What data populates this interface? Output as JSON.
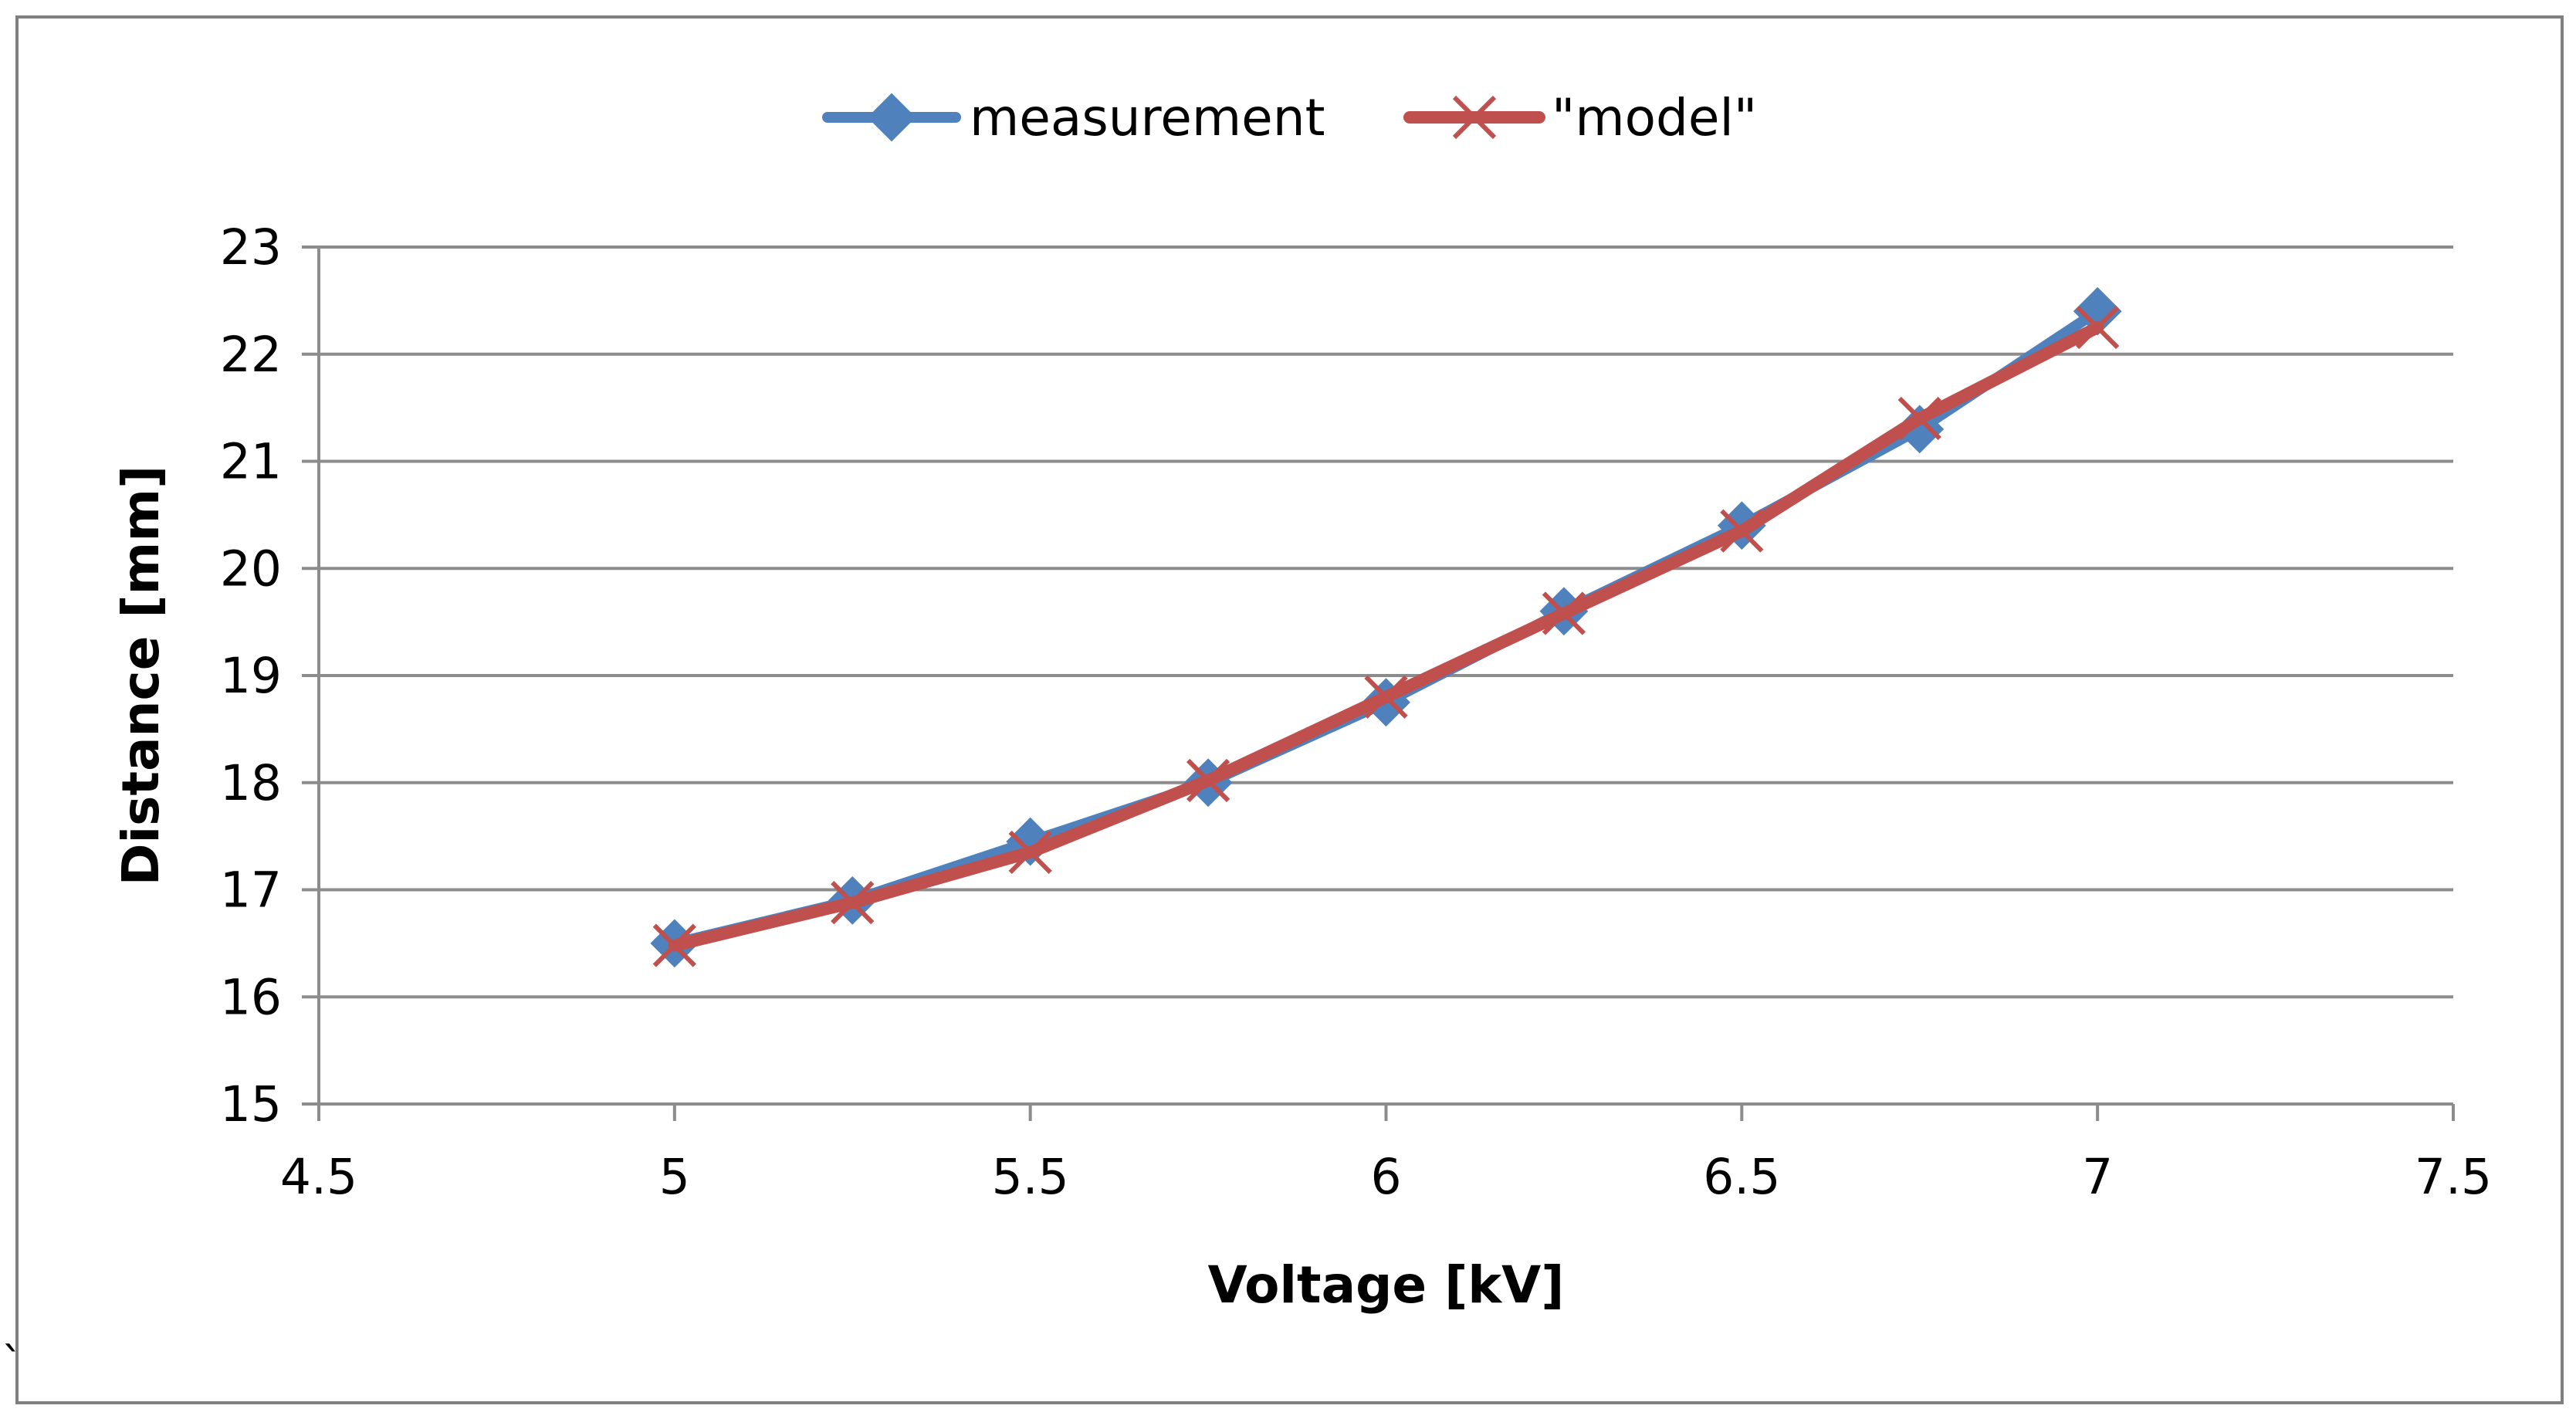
{
  "chart_data": {
    "type": "line",
    "title": "",
    "xlabel": "Voltage [kV]",
    "ylabel": "Distance [mm]",
    "xlim": [
      4.5,
      7.5
    ],
    "ylim": [
      15,
      23
    ],
    "xticks": [
      4.5,
      5,
      5.5,
      6,
      6.5,
      7,
      7.5
    ],
    "xtick_labels": [
      "4.5",
      "5",
      "5.5",
      "6",
      "6.5",
      "7",
      "7.5"
    ],
    "yticks": [
      15,
      16,
      17,
      18,
      19,
      20,
      21,
      22,
      23
    ],
    "ytick_labels": [
      "15",
      "16",
      "17",
      "18",
      "19",
      "20",
      "21",
      "22",
      "23"
    ],
    "grid": "horizontal",
    "legend_position": "top-center",
    "series": [
      {
        "name": "measurement",
        "color": "#4F81BD",
        "marker": "diamond",
        "x": [
          5,
          5.25,
          5.5,
          5.75,
          6,
          6.25,
          6.5,
          6.75,
          7
        ],
        "y": [
          16.5,
          16.9,
          17.45,
          18.0,
          18.75,
          19.6,
          20.4,
          21.3,
          22.4
        ]
      },
      {
        "name": "\"model\"",
        "color": "#C0504D",
        "marker": "x",
        "x": [
          5,
          5.25,
          5.5,
          5.75,
          6,
          6.25,
          6.5,
          6.75,
          7
        ],
        "y": [
          16.48,
          16.88,
          17.35,
          18.02,
          18.8,
          19.58,
          20.35,
          21.4,
          22.25
        ]
      }
    ]
  },
  "page": {
    "corner_mark": "`"
  }
}
